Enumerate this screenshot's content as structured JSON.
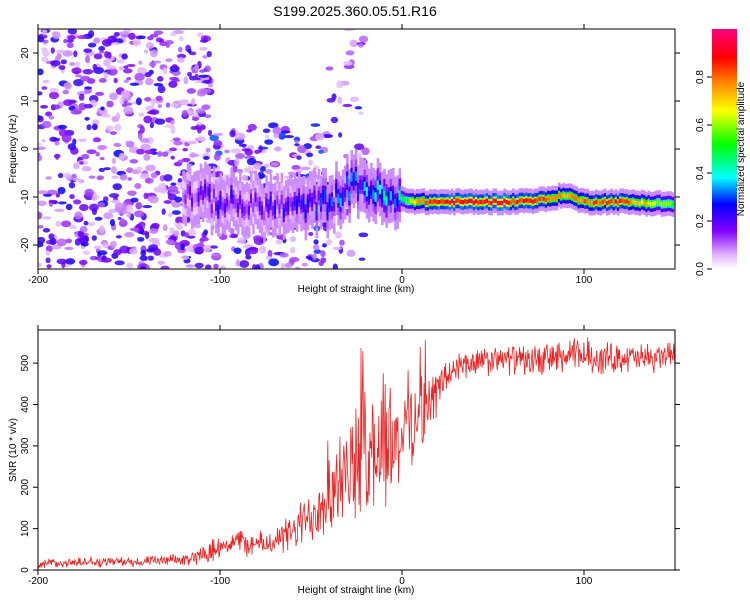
{
  "figure_title": "S199.2025.360.05.51.R16",
  "chart_data": [
    {
      "type": "heatmap",
      "title": "",
      "xlabel": "Height of straight line (km)",
      "ylabel": "Frequency (Hz)",
      "xlim": [
        -200,
        150
      ],
      "ylim": [
        -25,
        25
      ],
      "x_ticks": [
        -200,
        -100,
        0,
        100
      ],
      "y_ticks": [
        -20,
        -10,
        0,
        10,
        20
      ],
      "colorbar": {
        "label": "Normalized spectral amplitude",
        "range": [
          0,
          1
        ],
        "ticks": [
          "0.0",
          "0.2",
          "0.4",
          "0.6",
          "0.8"
        ],
        "tick_values": [
          0.0,
          0.2,
          0.4,
          0.6,
          0.8
        ],
        "colors": [
          "#ffffff",
          "#e0b0ff",
          "#8000ff",
          "#0000ff",
          "#00ffff",
          "#00ff00",
          "#ffff00",
          "#ff8000",
          "#ff0000",
          "#ff0080"
        ]
      },
      "ridge": {
        "x": [
          -120,
          -100,
          -80,
          -60,
          -40,
          -25,
          -15,
          -5,
          0,
          10,
          20,
          40,
          60,
          80,
          90,
          100,
          120,
          150
        ],
        "frequency": [
          -9,
          -11,
          -12,
          -12,
          -11,
          -7,
          -9,
          -11,
          -10.5,
          -11,
          -11,
          -11,
          -11,
          -10.5,
          -9.5,
          -11,
          -11,
          -11.5
        ],
        "amplitude": [
          0.15,
          0.25,
          0.22,
          0.25,
          0.3,
          0.35,
          0.45,
          0.45,
          0.5,
          0.8,
          0.9,
          0.92,
          0.9,
          0.85,
          0.75,
          0.8,
          0.85,
          0.55
        ]
      },
      "noise_regions": [
        {
          "x_from": -200,
          "x_to": -105,
          "freq_from": -25,
          "freq_to": 25,
          "density": "high"
        },
        {
          "x_from": -105,
          "x_to": -40,
          "freq_from": -25,
          "freq_to": 5,
          "density": "medium"
        },
        {
          "x_from": -40,
          "x_to": -20,
          "freq_from": -25,
          "freq_to": 25,
          "density": "low"
        }
      ]
    },
    {
      "type": "line",
      "title": "",
      "xlabel": "Height of straight line (km)",
      "ylabel": "SNR (10 * v/v)",
      "xlim": [
        -200,
        150
      ],
      "ylim": [
        0,
        580
      ],
      "x_ticks": [
        -200,
        -100,
        0,
        100
      ],
      "y_ticks": [
        0,
        100,
        200,
        300,
        400,
        500
      ],
      "series": [
        {
          "name": "SNR",
          "color": "#ee2222",
          "x": [
            -200,
            -180,
            -160,
            -140,
            -120,
            -110,
            -100,
            -90,
            -80,
            -70,
            -60,
            -50,
            -45,
            -40,
            -35,
            -30,
            -25,
            -20,
            -15,
            -10,
            -5,
            0,
            5,
            10,
            15,
            20,
            25,
            30,
            40,
            50,
            60,
            70,
            80,
            90,
            100,
            110,
            120,
            130,
            140,
            150
          ],
          "values": [
            15,
            18,
            20,
            20,
            25,
            35,
            60,
            70,
            60,
            70,
            90,
            130,
            160,
            200,
            200,
            230,
            260,
            280,
            300,
            290,
            300,
            330,
            370,
            380,
            400,
            440,
            470,
            490,
            500,
            505,
            510,
            505,
            510,
            515,
            520,
            510,
            515,
            510,
            515,
            520
          ],
          "noise_amplitude": [
            12,
            12,
            12,
            12,
            14,
            20,
            30,
            30,
            30,
            35,
            45,
            70,
            90,
            110,
            110,
            120,
            130,
            160,
            160,
            140,
            130,
            120,
            110,
            90,
            70,
            55,
            45,
            40,
            35,
            35,
            35,
            35,
            40,
            40,
            45,
            40,
            35,
            35,
            35,
            35
          ]
        }
      ]
    }
  ]
}
